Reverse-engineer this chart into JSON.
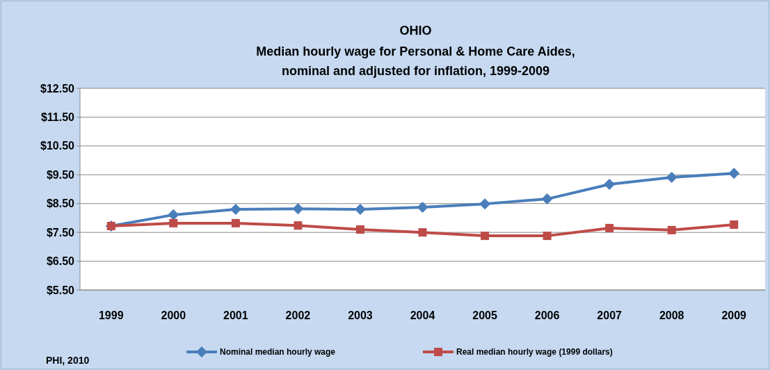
{
  "chart_data": {
    "type": "line",
    "title": "OHIO",
    "subtitle": "Median hourly wage for Personal & Home Care Aides, nominal and adjusted for inflation, 1999-2009",
    "categories": [
      "1999",
      "2000",
      "2001",
      "2002",
      "2003",
      "2004",
      "2005",
      "2006",
      "2007",
      "2008",
      "2009"
    ],
    "series": [
      {
        "name": "Nominal median hourly wage",
        "color": "#4a7ebb",
        "marker": "diamond",
        "values": [
          7.72,
          8.11,
          8.3,
          8.32,
          8.3,
          8.37,
          8.49,
          8.66,
          9.17,
          9.41,
          9.55
        ]
      },
      {
        "name": "Real median hourly wage (1999 dollars)",
        "color": "#be4b48",
        "marker": "square",
        "values": [
          7.72,
          7.82,
          7.82,
          7.74,
          7.6,
          7.5,
          7.38,
          7.38,
          7.65,
          7.58,
          7.77
        ]
      }
    ],
    "ylim": [
      5.5,
      12.5
    ],
    "yticks": [
      {
        "value": 5.5,
        "label": "$5.50"
      },
      {
        "value": 6.5,
        "label": "$6.50"
      },
      {
        "value": 7.5,
        "label": "$7.50"
      },
      {
        "value": 8.5,
        "label": "$8.50"
      },
      {
        "value": 9.5,
        "label": "$9.50"
      },
      {
        "value": 10.5,
        "label": "$10.50"
      },
      {
        "value": 11.5,
        "label": "$11.50"
      },
      {
        "value": 12.5,
        "label": "$12.50"
      }
    ],
    "grid": "y",
    "legend": "bottom",
    "line_style": "solid",
    "annotations": [
      "PHI, 2010"
    ]
  }
}
